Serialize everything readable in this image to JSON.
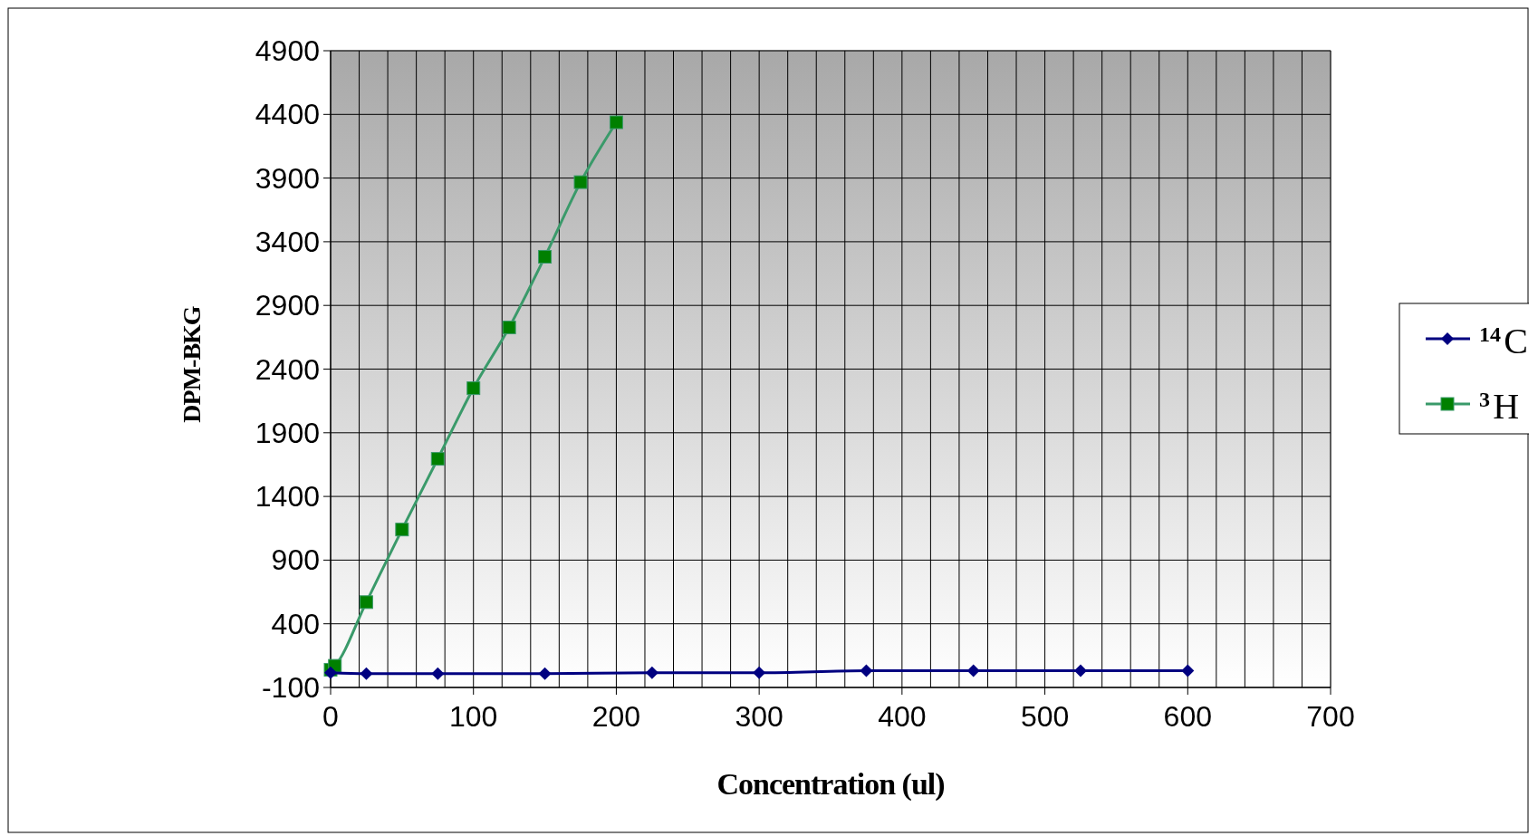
{
  "chart_data": {
    "type": "line",
    "xlabel": "Concentration (ul)",
    "ylabel": "DPM-BKG",
    "xlim": [
      0,
      700
    ],
    "xticks": [
      0,
      {
        "value": 20,
        "label": null
      },
      {
        "value": 40,
        "label": null
      },
      {
        "value": 60,
        "label": null
      },
      {
        "value": 80,
        "label": null
      },
      100,
      {
        "value": 120,
        "label": null
      },
      {
        "value": 140,
        "label": null
      },
      {
        "value": 160,
        "label": null
      },
      {
        "value": 180,
        "label": null
      },
      200,
      {
        "value": 220,
        "label": null
      },
      {
        "value": 240,
        "label": null
      },
      {
        "value": 260,
        "label": null
      },
      {
        "value": 280,
        "label": null
      },
      300,
      {
        "value": 320,
        "label": null
      },
      {
        "value": 340,
        "label": null
      },
      {
        "value": 360,
        "label": null
      },
      {
        "value": 380,
        "label": null
      },
      400,
      {
        "value": 420,
        "label": null
      },
      {
        "value": 440,
        "label": null
      },
      {
        "value": 460,
        "label": null
      },
      {
        "value": 480,
        "label": null
      },
      500,
      {
        "value": 520,
        "label": null
      },
      {
        "value": 540,
        "label": null
      },
      {
        "value": 560,
        "label": null
      },
      {
        "value": 580,
        "label": null
      },
      600,
      {
        "value": 620,
        "label": null
      },
      {
        "value": 640,
        "label": null
      },
      {
        "value": 660,
        "label": null
      },
      {
        "value": 680,
        "label": null
      },
      700
    ],
    "ylim": [
      -100,
      4900
    ],
    "yticks": [
      -100,
      400,
      900,
      1400,
      1900,
      2400,
      2900,
      3400,
      3900,
      4400,
      4900
    ],
    "grid": true,
    "legend": "right",
    "line_style": "solid",
    "series": [
      {
        "name": "$^{14}$C",
        "color": "#000080",
        "marker": "diamond",
        "x": [
          0,
          25,
          75,
          150,
          225,
          300,
          375,
          450,
          525,
          600
        ],
        "values": [
          15,
          8,
          8,
          8,
          15,
          15,
          31,
          31,
          31,
          31
        ]
      },
      {
        "name": "$^{3}$H",
        "color": "#008000",
        "marker": "square",
        "x": [
          0,
          3,
          25,
          50,
          75,
          100,
          125,
          150,
          175,
          200
        ],
        "values": [
          39,
          70,
          570,
          1140,
          1695,
          2250,
          2727,
          3282,
          3868,
          4338
        ]
      }
    ]
  }
}
